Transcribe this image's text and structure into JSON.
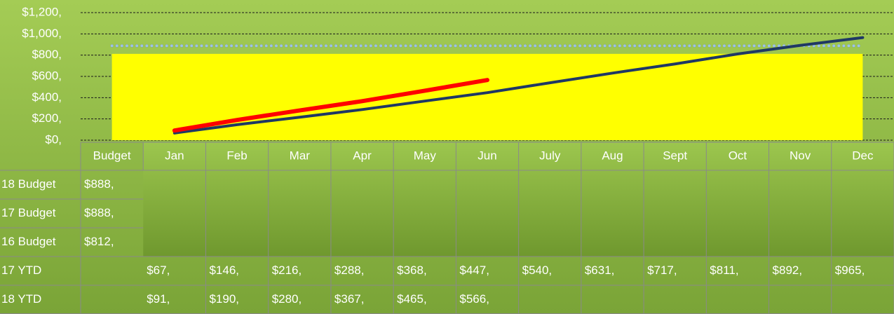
{
  "chart_data": {
    "type": "line",
    "categories": [
      "Budget",
      "Jan",
      "Feb",
      "Mar",
      "Apr",
      "May",
      "Jun",
      "July",
      "Aug",
      "Sept",
      "Oct",
      "Nov",
      "Dec"
    ],
    "ylim": [
      0,
      1200
    ],
    "yticks": [
      {
        "value": 0,
        "label": "$0,"
      },
      {
        "value": 200,
        "label": "$200,"
      },
      {
        "value": 400,
        "label": "$400,"
      },
      {
        "value": 600,
        "label": "$600,"
      },
      {
        "value": 800,
        "label": "$800,"
      },
      {
        "value": 1000,
        "label": "$1,000,"
      },
      {
        "value": 1200,
        "label": "$1,200,"
      }
    ],
    "grid": true,
    "series": [
      {
        "name": "18 Budget",
        "color": "#1f3864",
        "style": "dotted",
        "values": [
          888,
          null,
          null,
          null,
          null,
          null,
          null,
          null,
          null,
          null,
          null,
          null,
          null
        ],
        "value_labels": [
          "$888,",
          null,
          null,
          null,
          null,
          null,
          null,
          null,
          null,
          null,
          null,
          null,
          null
        ]
      },
      {
        "name": "17 Budget",
        "color": "#9dc3e6",
        "style": "dotted",
        "values": [
          888,
          null,
          null,
          null,
          null,
          null,
          null,
          null,
          null,
          null,
          null,
          null,
          null
        ],
        "value_labels": [
          "$888,",
          null,
          null,
          null,
          null,
          null,
          null,
          null,
          null,
          null,
          null,
          null,
          null
        ]
      },
      {
        "name": "16 Budget",
        "color": "#ffff00",
        "style": "area",
        "values": [
          812,
          null,
          null,
          null,
          null,
          null,
          null,
          null,
          null,
          null,
          null,
          null,
          null
        ],
        "value_labels": [
          "$812,",
          null,
          null,
          null,
          null,
          null,
          null,
          null,
          null,
          null,
          null,
          null,
          null
        ]
      },
      {
        "name": "17 YTD",
        "color": "#1f3864",
        "style": "solid",
        "values": [
          null,
          67,
          146,
          216,
          288,
          368,
          447,
          540,
          631,
          717,
          811,
          892,
          965
        ],
        "value_labels": [
          null,
          "$67,",
          "$146,",
          "$216,",
          "$288,",
          "$368,",
          "$447,",
          "$540,",
          "$631,",
          "$717,",
          "$811,",
          "$892,",
          "$965,"
        ]
      },
      {
        "name": "18 YTD",
        "color": "#ff0000",
        "style": "solid",
        "values": [
          null,
          91,
          190,
          280,
          367,
          465,
          566,
          null,
          null,
          null,
          null,
          null,
          null
        ],
        "value_labels": [
          null,
          "$91,",
          "$190,",
          "$280,",
          "$367,",
          "$465,",
          "$566,",
          null,
          null,
          null,
          null,
          null,
          null
        ]
      }
    ]
  }
}
